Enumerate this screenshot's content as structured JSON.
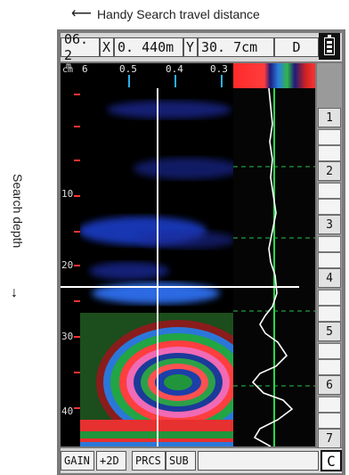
{
  "annotations": {
    "travel": "Handy Search travel distance",
    "depth": "Search depth"
  },
  "header": {
    "scale_value": "06. 2",
    "x_label": "X",
    "x_value": "0. 440m",
    "y_label": "Y",
    "y_value": "30. 7cm",
    "mode": "D",
    "battery_icon": "battery-icon"
  },
  "top_ruler": {
    "unit": "m",
    "labels": [
      "6",
      "0.5",
      "0.4",
      "0.3"
    ]
  },
  "left_axis": {
    "unit": "cm",
    "labels": [
      "10",
      "20",
      "30",
      "40"
    ]
  },
  "right_markers": [
    "1",
    "2",
    "3",
    "4",
    "5",
    "6",
    "7"
  ],
  "footer": {
    "gain": "GAIN",
    "mode_2d": "+2D",
    "prcs": "PRCS",
    "sub": "SUB",
    "channel": "C"
  },
  "colors": {
    "screen_bg": "#000000",
    "cursor_line": "#ffffff",
    "trace_green": "#27d84a",
    "trace_white": "#ffffff",
    "tick_red": "#ff3333",
    "tick_blue": "#2ab0e8"
  }
}
